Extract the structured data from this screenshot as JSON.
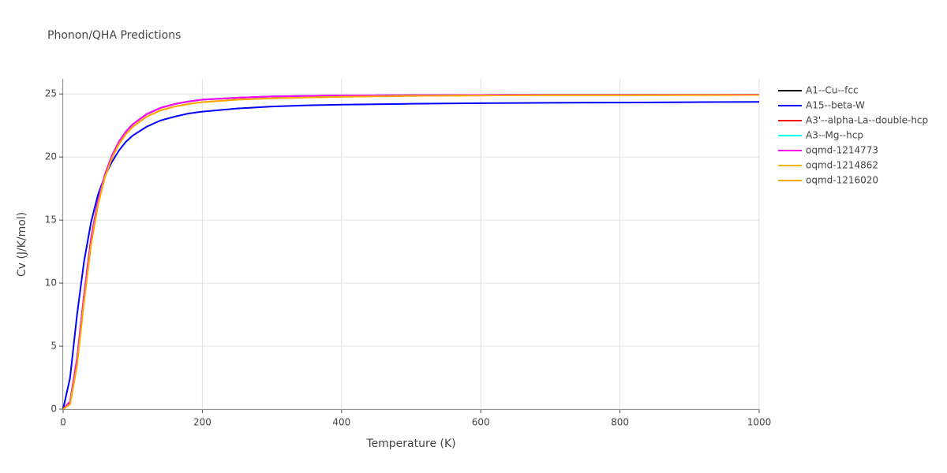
{
  "chart_data": {
    "type": "line",
    "title": "Phonon/QHA Predictions",
    "x_label": "Temperature (K)",
    "y_label": "Cv (J/K/mol)",
    "xlim": [
      0,
      1000
    ],
    "ylim": [
      0,
      26.2
    ],
    "xticks": [
      0,
      200,
      400,
      600,
      800,
      1000
    ],
    "yticks": [
      0,
      5,
      10,
      15,
      20,
      25
    ],
    "grid": true,
    "legend": "right",
    "x": [
      0,
      10,
      20,
      30,
      40,
      50,
      60,
      70,
      80,
      90,
      100,
      120,
      140,
      160,
      180,
      200,
      250,
      300,
      350,
      400,
      500,
      600,
      700,
      800,
      900,
      1000
    ],
    "series": [
      {
        "name": "A1--Cu--fcc",
        "color": "#000000",
        "values": [
          0,
          0.6,
          4,
          9,
          13.5,
          16.5,
          18.6,
          20.1,
          21.2,
          22,
          22.6,
          23.4,
          23.9,
          24.2,
          24.4,
          24.55,
          24.7,
          24.8,
          24.85,
          24.88,
          24.9,
          24.92,
          24.93,
          24.94,
          24.94,
          24.95
        ]
      },
      {
        "name": "A15--beta-W",
        "color": "#0000ff",
        "values": [
          0,
          2.5,
          7.5,
          11.7,
          14.8,
          17,
          18.5,
          19.6,
          20.5,
          21.2,
          21.7,
          22.4,
          22.9,
          23.2,
          23.45,
          23.6,
          23.85,
          24,
          24.1,
          24.15,
          24.22,
          24.27,
          24.3,
          24.32,
          24.35,
          24.37
        ]
      },
      {
        "name": "A3'--alpha-La--double-hcp",
        "color": "#ff0000",
        "values": [
          0,
          0.6,
          4,
          9,
          13.5,
          16.5,
          18.6,
          20.1,
          21.2,
          22,
          22.6,
          23.4,
          23.9,
          24.2,
          24.4,
          24.55,
          24.7,
          24.8,
          24.85,
          24.88,
          24.9,
          24.92,
          24.93,
          24.94,
          24.94,
          24.95
        ]
      },
      {
        "name": "A3--Mg--hcp",
        "color": "#00ffff",
        "values": [
          0,
          0.6,
          4,
          9,
          13.5,
          16.5,
          18.6,
          20.1,
          21.2,
          22,
          22.6,
          23.4,
          23.9,
          24.2,
          24.4,
          24.55,
          24.7,
          24.8,
          24.85,
          24.88,
          24.9,
          24.92,
          24.93,
          24.94,
          24.94,
          24.95
        ]
      },
      {
        "name": "oqmd-1214773",
        "color": "#ff00ff",
        "values": [
          0,
          0.6,
          4,
          9,
          13.5,
          16.5,
          18.6,
          20.1,
          21.2,
          22,
          22.6,
          23.4,
          23.9,
          24.2,
          24.4,
          24.55,
          24.7,
          24.8,
          24.85,
          24.88,
          24.9,
          24.92,
          24.93,
          24.94,
          24.94,
          24.95
        ]
      },
      {
        "name": "oqmd-1214862",
        "color": "#f5b800",
        "values": [
          0,
          0.4,
          3.5,
          8.5,
          13,
          16.2,
          18.4,
          19.9,
          21,
          21.8,
          22.4,
          23.2,
          23.7,
          24,
          24.2,
          24.35,
          24.55,
          24.65,
          24.72,
          24.78,
          24.85,
          24.88,
          24.9,
          24.9,
          24.91,
          24.92
        ]
      },
      {
        "name": "oqmd-1216020",
        "color": "#ffa500",
        "values": [
          0,
          0.4,
          3.5,
          8.5,
          13,
          16.2,
          18.4,
          19.9,
          21,
          21.8,
          22.4,
          23.2,
          23.7,
          24,
          24.2,
          24.35,
          24.55,
          24.65,
          24.72,
          24.78,
          24.85,
          24.88,
          24.9,
          24.9,
          24.91,
          24.92
        ]
      }
    ]
  }
}
